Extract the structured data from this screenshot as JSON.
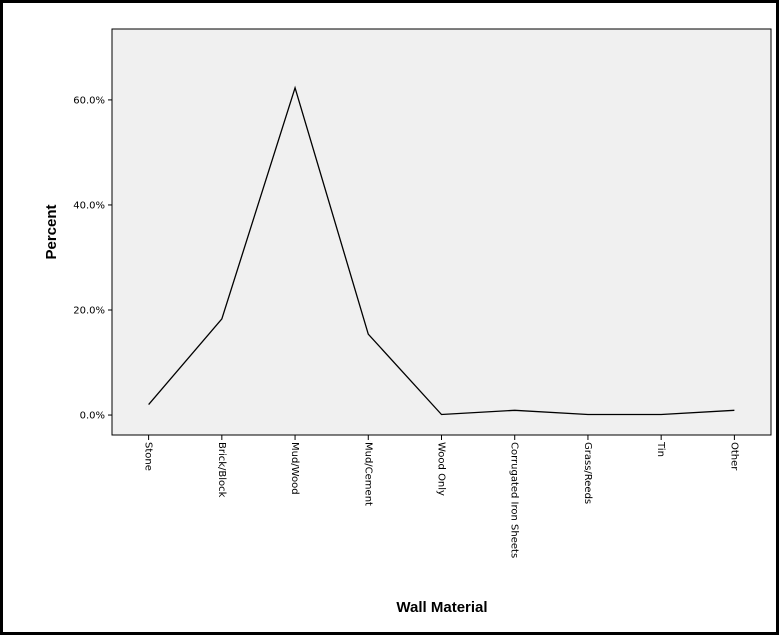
{
  "chart_data": {
    "type": "line",
    "title": "",
    "xlabel": "Wall Material",
    "ylabel": "Percent",
    "categories": [
      "Stone",
      "Brick/Block",
      "Mud/Wood",
      "Mud/Cement",
      "Wood Only",
      "Corrugated Iron Sheets",
      "Grass/Reeds",
      "Tin",
      "Other"
    ],
    "series": [
      {
        "values": [
          2.0,
          18.3,
          62.3,
          15.4,
          0.1,
          0.9,
          0.1,
          0.1,
          0.9
        ]
      }
    ],
    "ylim": [
      -3.8,
      73.5
    ],
    "yticks": [
      0,
      20,
      40,
      60
    ],
    "ytick_labels": [
      "0.0%",
      "20.0%",
      "40.0%",
      "60.0%"
    ],
    "grid": false,
    "legend": "none",
    "colors": {
      "plot_background": "#f0f0f0",
      "line": "#000000",
      "frame": "#000000"
    }
  }
}
